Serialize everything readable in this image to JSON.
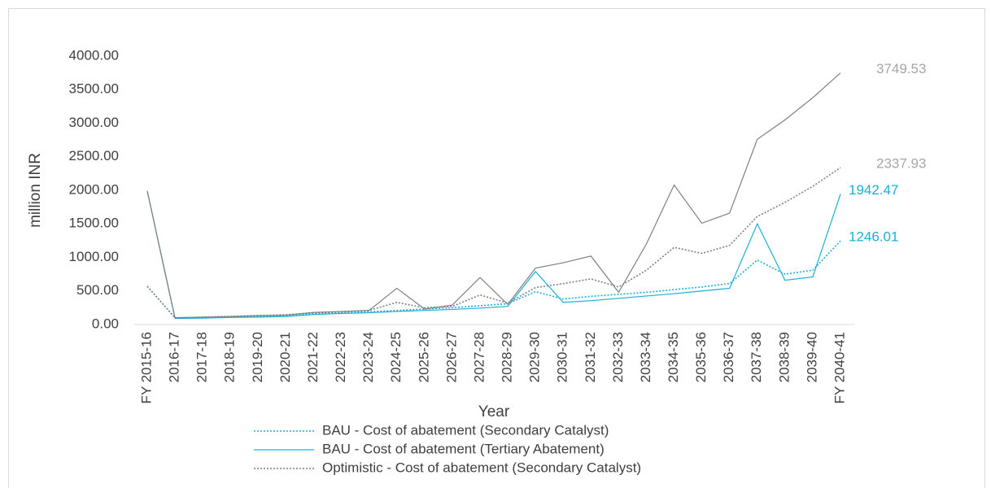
{
  "chart_data": {
    "type": "line",
    "ylabel": "million INR",
    "xlabel": "Year",
    "categories": [
      "FY 2015-16",
      "2016-17",
      "2017-18",
      "2018-19",
      "2019-20",
      "2020-21",
      "2021-22",
      "2022-23",
      "2023-24",
      "2024-25",
      "2025-26",
      "2026-27",
      "2027-28",
      "2028-29",
      "2029-30",
      "2030-31",
      "2031-32",
      "2032-33",
      "2033-34",
      "2034-35",
      "2035-36",
      "2036-37",
      "2037-38",
      "2038-39",
      "2039-40",
      "FY 2040-41"
    ],
    "ylim": [
      0,
      4000
    ],
    "yticks": [
      {
        "value": 0,
        "label": "0.00"
      },
      {
        "value": 500,
        "label": "500.00"
      },
      {
        "value": 1000,
        "label": "1000.00"
      },
      {
        "value": 1500,
        "label": "1500.00"
      },
      {
        "value": 2000,
        "label": "2000.00"
      },
      {
        "value": 2500,
        "label": "2500.00"
      },
      {
        "value": 3000,
        "label": "3000.00"
      },
      {
        "value": 3500,
        "label": "3500.00"
      },
      {
        "value": 4000,
        "label": "4000.00"
      }
    ],
    "grid": false,
    "label_last": true,
    "series": [
      {
        "name": "BAU - Cost of abatement (Secondary Catalyst)",
        "color": "#1aafd6",
        "label_color": "#1aafd6",
        "dash": "dotted",
        "values": [
          570,
          100,
          105,
          115,
          125,
          130,
          160,
          175,
          190,
          210,
          230,
          250,
          280,
          310,
          490,
          380,
          420,
          450,
          480,
          520,
          560,
          610,
          960,
          750,
          810,
          1246.01
        ]
      },
      {
        "name": "BAU - Cost of abatement (Tertiary Abatement)",
        "color": "#1aafd6",
        "label_color": "#1aafd6",
        "dash": "solid",
        "values": [
          1990,
          90,
          95,
          105,
          110,
          120,
          150,
          165,
          175,
          195,
          210,
          225,
          245,
          270,
          790,
          330,
          355,
          390,
          425,
          460,
          500,
          540,
          1500,
          660,
          710,
          1942.47
        ]
      },
      {
        "name": "Optimistic - Cost of abatement (Secondary Catalyst)",
        "color": "#7f7f7f",
        "label_color": "#a6a6a6",
        "dash": "dotted",
        "values": [
          570,
          100,
          110,
          120,
          135,
          145,
          175,
          190,
          210,
          330,
          250,
          270,
          440,
          320,
          550,
          610,
          680,
          560,
          810,
          1150,
          1060,
          1180,
          1610,
          1820,
          2060,
          2337.93
        ]
      },
      {
        "color": "#7f7f7f",
        "label_color": "#a6a6a6",
        "dash": "solid",
        "values": [
          1990,
          100,
          110,
          120,
          130,
          140,
          180,
          195,
          210,
          540,
          230,
          290,
          700,
          300,
          840,
          920,
          1020,
          480,
          1200,
          2080,
          1510,
          1660,
          2760,
          3050,
          3380,
          3749.53
        ]
      }
    ]
  }
}
